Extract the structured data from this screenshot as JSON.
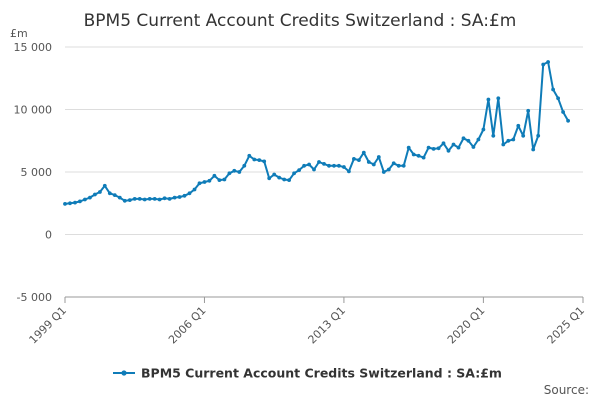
{
  "chart_data": {
    "type": "line",
    "title": "BPM5 Current Account Credits Switzerland : SA:£m",
    "ylabel": "£m",
    "xlabel": "",
    "ylim": [
      -5000,
      15000
    ],
    "yticks": [
      -5000,
      0,
      5000,
      10000,
      15000
    ],
    "ytick_labels": [
      "-5 000",
      "0",
      "5 000",
      "10 000",
      "15 000"
    ],
    "xlim": [
      "1999 Q1",
      "2025 Q1"
    ],
    "xticks": [
      "1999 Q1",
      "2006 Q1",
      "2013 Q1",
      "2020 Q1",
      "2025 Q1"
    ],
    "grid": "horizontal",
    "legend": "bottom-center",
    "colors": {
      "series": "#0f7cb8",
      "grid": "#dddddd",
      "axis": "#999999",
      "text": "#333333"
    },
    "x": [
      "1999 Q1",
      "1999 Q2",
      "1999 Q3",
      "1999 Q4",
      "2000 Q1",
      "2000 Q2",
      "2000 Q3",
      "2000 Q4",
      "2001 Q1",
      "2001 Q2",
      "2001 Q3",
      "2001 Q4",
      "2002 Q1",
      "2002 Q2",
      "2002 Q3",
      "2002 Q4",
      "2003 Q1",
      "2003 Q2",
      "2003 Q3",
      "2003 Q4",
      "2004 Q1",
      "2004 Q2",
      "2004 Q3",
      "2004 Q4",
      "2005 Q1",
      "2005 Q2",
      "2005 Q3",
      "2005 Q4",
      "2006 Q1",
      "2006 Q2",
      "2006 Q3",
      "2006 Q4",
      "2007 Q1",
      "2007 Q2",
      "2007 Q3",
      "2007 Q4",
      "2008 Q1",
      "2008 Q2",
      "2008 Q3",
      "2008 Q4",
      "2009 Q1",
      "2009 Q2",
      "2009 Q3",
      "2009 Q4",
      "2010 Q1",
      "2010 Q2",
      "2010 Q3",
      "2010 Q4",
      "2011 Q1",
      "2011 Q2",
      "2011 Q3",
      "2011 Q4",
      "2012 Q1",
      "2012 Q2",
      "2012 Q3",
      "2012 Q4",
      "2013 Q1",
      "2013 Q2",
      "2013 Q3",
      "2013 Q4",
      "2014 Q1",
      "2014 Q2",
      "2014 Q3",
      "2014 Q4",
      "2015 Q1",
      "2015 Q2",
      "2015 Q3",
      "2015 Q4",
      "2016 Q1",
      "2016 Q2",
      "2016 Q3",
      "2016 Q4",
      "2017 Q1",
      "2017 Q2",
      "2017 Q3",
      "2017 Q4",
      "2018 Q1",
      "2018 Q2",
      "2018 Q3",
      "2018 Q4",
      "2019 Q1",
      "2019 Q2",
      "2019 Q3",
      "2019 Q4",
      "2020 Q1",
      "2020 Q2",
      "2020 Q3",
      "2020 Q4",
      "2021 Q1",
      "2021 Q2",
      "2021 Q3",
      "2021 Q4",
      "2022 Q1",
      "2022 Q2",
      "2022 Q3",
      "2022 Q4",
      "2023 Q1",
      "2023 Q2",
      "2023 Q3",
      "2023 Q4",
      "2024 Q1",
      "2024 Q2"
    ],
    "series": [
      {
        "name": "BPM5 Current Account Credits Switzerland : SA:£m",
        "values": [
          2450,
          2500,
          2550,
          2650,
          2800,
          2950,
          3200,
          3400,
          3900,
          3300,
          3150,
          2950,
          2700,
          2750,
          2850,
          2850,
          2800,
          2850,
          2850,
          2800,
          2900,
          2850,
          2950,
          3000,
          3100,
          3300,
          3600,
          4100,
          4200,
          4300,
          4700,
          4350,
          4400,
          4900,
          5100,
          5000,
          5500,
          6300,
          6000,
          5950,
          5850,
          4500,
          4800,
          4550,
          4400,
          4350,
          4900,
          5150,
          5500,
          5600,
          5200,
          5800,
          5650,
          5500,
          5500,
          5500,
          5400,
          5050,
          6050,
          5950,
          6550,
          5800,
          5600,
          6200,
          5000,
          5200,
          5700,
          5500,
          5500,
          6950,
          6400,
          6300,
          6150,
          6950,
          6850,
          6900,
          7300,
          6700,
          7200,
          6950,
          7700,
          7500,
          7000,
          7600,
          8400,
          10800,
          7900,
          10900,
          7200,
          7500,
          7600,
          8700,
          7900,
          9900,
          6800,
          7900,
          13600,
          13800,
          11600,
          10900,
          9800,
          9100
        ]
      }
    ]
  },
  "legend_label": "BPM5 Current Account Credits Switzerland : SA:£m",
  "footer": {
    "source": "Source:"
  }
}
